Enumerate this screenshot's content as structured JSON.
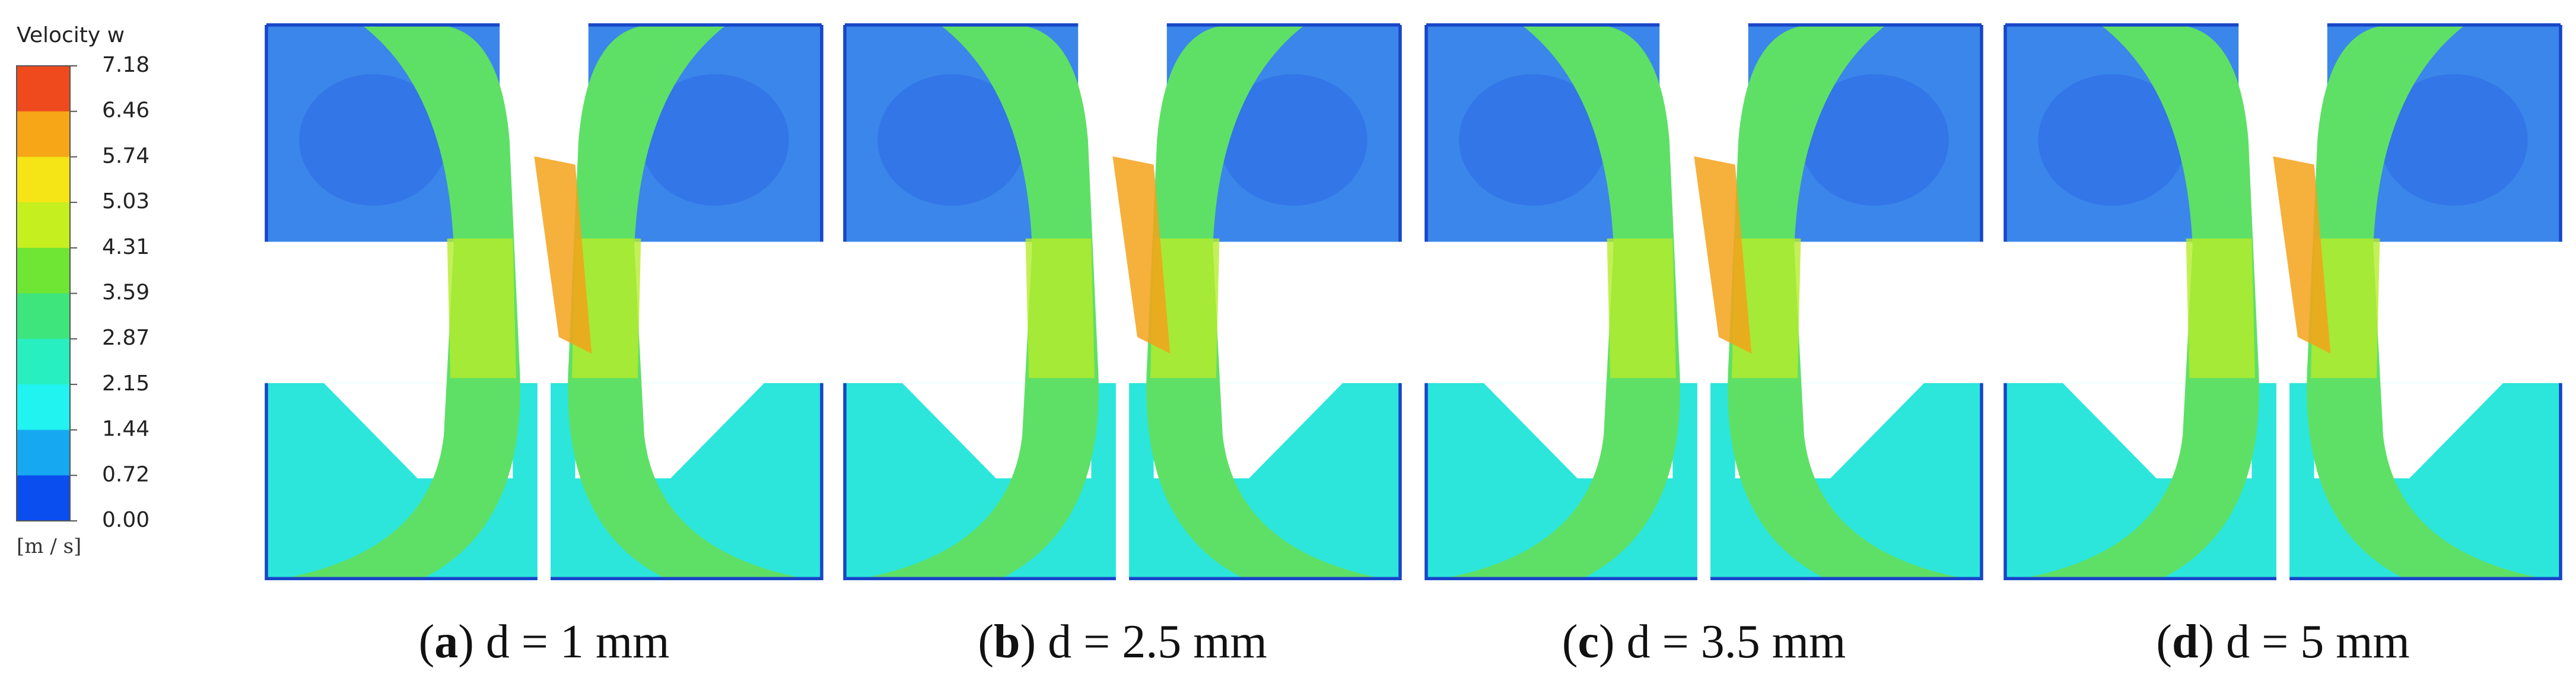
{
  "legend": {
    "title": "Velocity w",
    "labels": [
      "7.18",
      "6.46",
      "5.74",
      "5.03",
      "4.31",
      "3.59",
      "2.87",
      "2.15",
      "1.44",
      "0.72",
      "0.00"
    ],
    "colors": [
      "#ee4a1e",
      "#f6a616",
      "#f5e416",
      "#c6ef1f",
      "#6fe534",
      "#3ee57c",
      "#27efc0",
      "#20f3f0",
      "#16a8f0",
      "#0b4ef0"
    ],
    "unit": "[m / s]"
  },
  "panels": [
    {
      "caption_parts": [
        "(",
        "a",
        ") d = 1 mm"
      ]
    },
    {
      "caption_parts": [
        "(",
        "b",
        ") d = 2.5 mm"
      ]
    },
    {
      "caption_parts": [
        "(",
        "c",
        ") d = 3.5 mm"
      ]
    },
    {
      "caption_parts": [
        "(",
        "d",
        ") d = 5 mm"
      ]
    }
  ]
}
